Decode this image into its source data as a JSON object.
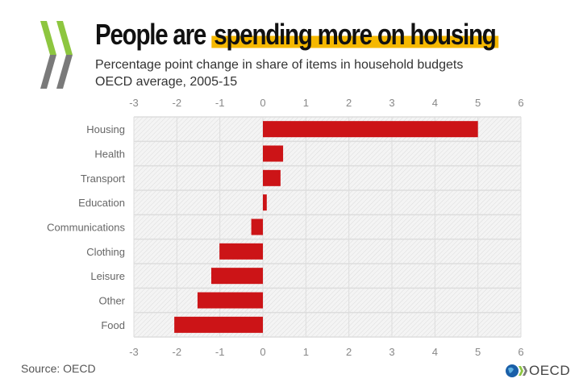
{
  "header": {
    "title_plain": "People are",
    "title_highlight": "spending more on housing",
    "subtitle_line1": "Percentage point change in share of items in household budgets",
    "subtitle_line2": "OECD average, 2005-15"
  },
  "footer": {
    "source": "Source: OECD",
    "logo_text": "OECD"
  },
  "colors": {
    "bar": "#cc1417",
    "highlight": "#f5b800",
    "logo_green": "#8dc63f",
    "logo_gray": "#7a7a7a"
  },
  "chart_data": {
    "type": "bar",
    "orientation": "horizontal",
    "title": "People are spending more on housing",
    "subtitle": "Percentage point change in share of items in household budgets, OECD average, 2005-15",
    "categories": [
      "Housing",
      "Health",
      "Transport",
      "Education",
      "Communications",
      "Clothing",
      "Leisure",
      "Other",
      "Food"
    ],
    "values": [
      5.0,
      0.47,
      0.41,
      0.09,
      -0.27,
      -1.01,
      -1.2,
      -1.52,
      -2.06
    ],
    "xlim": [
      -3,
      6
    ],
    "xticks": [
      "-3",
      "-2",
      "-1",
      "0",
      "1",
      "2",
      "3",
      "4",
      "5",
      "6"
    ],
    "grid": true,
    "xlabel": "",
    "ylabel": ""
  }
}
